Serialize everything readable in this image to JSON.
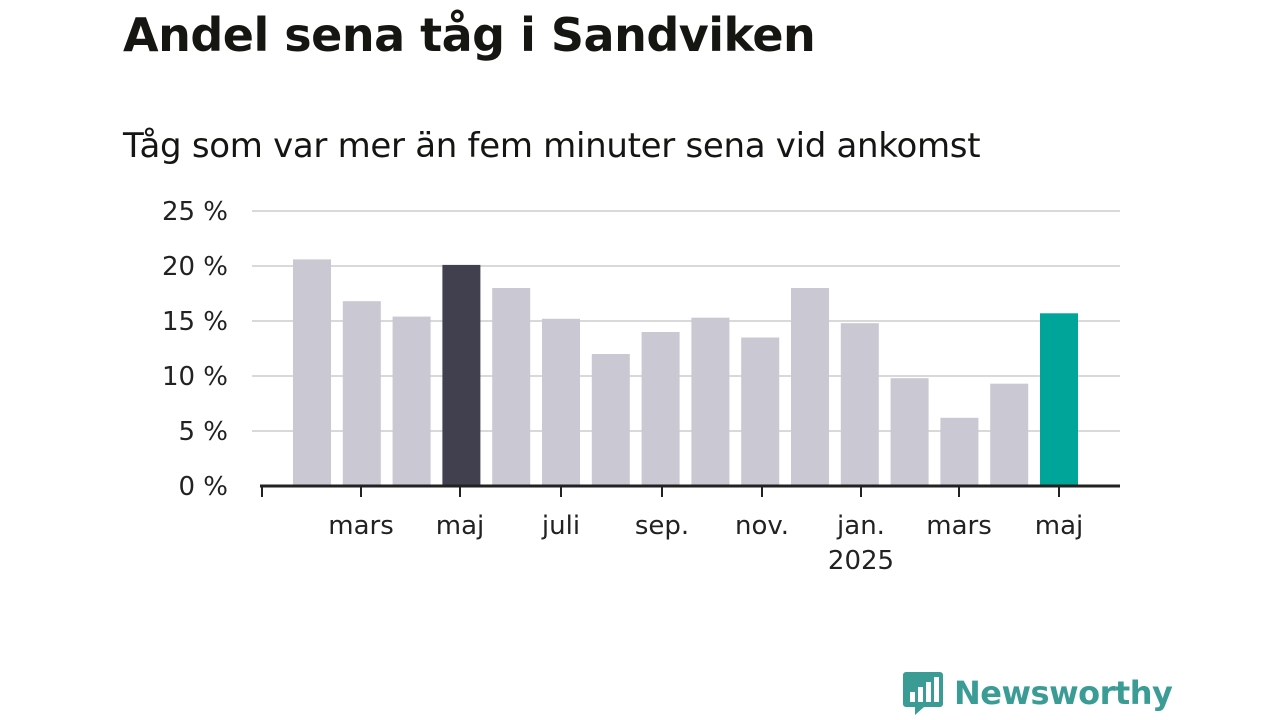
{
  "header": {
    "title": "Andel sena tåg i Sandviken",
    "subtitle": "Tåg som var mer än fem minuter sena vid ankomst"
  },
  "branding": {
    "logo_text": "Newsworthy",
    "logo_icon": "bar-chart-speech-bubble-icon",
    "logo_color": "#3a9c95"
  },
  "colors": {
    "default_bar": "#c9c8d3",
    "highlight_previous": "#41404e",
    "highlight_current": "#00a599",
    "grid": "#d9d9d9",
    "axis": "#222222"
  },
  "chart_data": {
    "type": "bar",
    "title": "Andel sena tåg i Sandviken",
    "subtitle": "Tåg som var mer än fem minuter sena vid ankomst",
    "xlabel": "",
    "ylabel": "",
    "ylim": [
      0,
      25
    ],
    "yticks": [
      0,
      5,
      10,
      15,
      20,
      25
    ],
    "ytick_labels": [
      "0 %",
      "5 %",
      "10 %",
      "15 %",
      "20 %",
      "25 %"
    ],
    "grid": true,
    "categories": [
      "2024-02",
      "2024-03",
      "2024-04",
      "2024-05",
      "2024-06",
      "2024-07",
      "2024-08",
      "2024-09",
      "2024-10",
      "2024-11",
      "2024-12",
      "2025-01",
      "2025-02",
      "2025-03",
      "2025-04",
      "2025-05"
    ],
    "values": [
      20.6,
      16.8,
      15.4,
      20.1,
      18.0,
      15.2,
      12.0,
      14.0,
      15.3,
      13.5,
      18.0,
      14.8,
      9.8,
      6.2,
      9.3,
      15.7
    ],
    "highlights": {
      "2024-05": "highlight_previous",
      "2025-05": "highlight_current"
    },
    "xtick_labels": [
      {
        "at": "2024-03",
        "label": "mars",
        "sublabel": ""
      },
      {
        "at": "2024-05",
        "label": "maj",
        "sublabel": ""
      },
      {
        "at": "2024-07",
        "label": "juli",
        "sublabel": ""
      },
      {
        "at": "2024-09",
        "label": "sep.",
        "sublabel": ""
      },
      {
        "at": "2024-11",
        "label": "nov.",
        "sublabel": ""
      },
      {
        "at": "2025-01",
        "label": "jan.",
        "sublabel": "2025"
      },
      {
        "at": "2025-03",
        "label": "mars",
        "sublabel": ""
      },
      {
        "at": "2025-05",
        "label": "maj",
        "sublabel": ""
      }
    ]
  }
}
